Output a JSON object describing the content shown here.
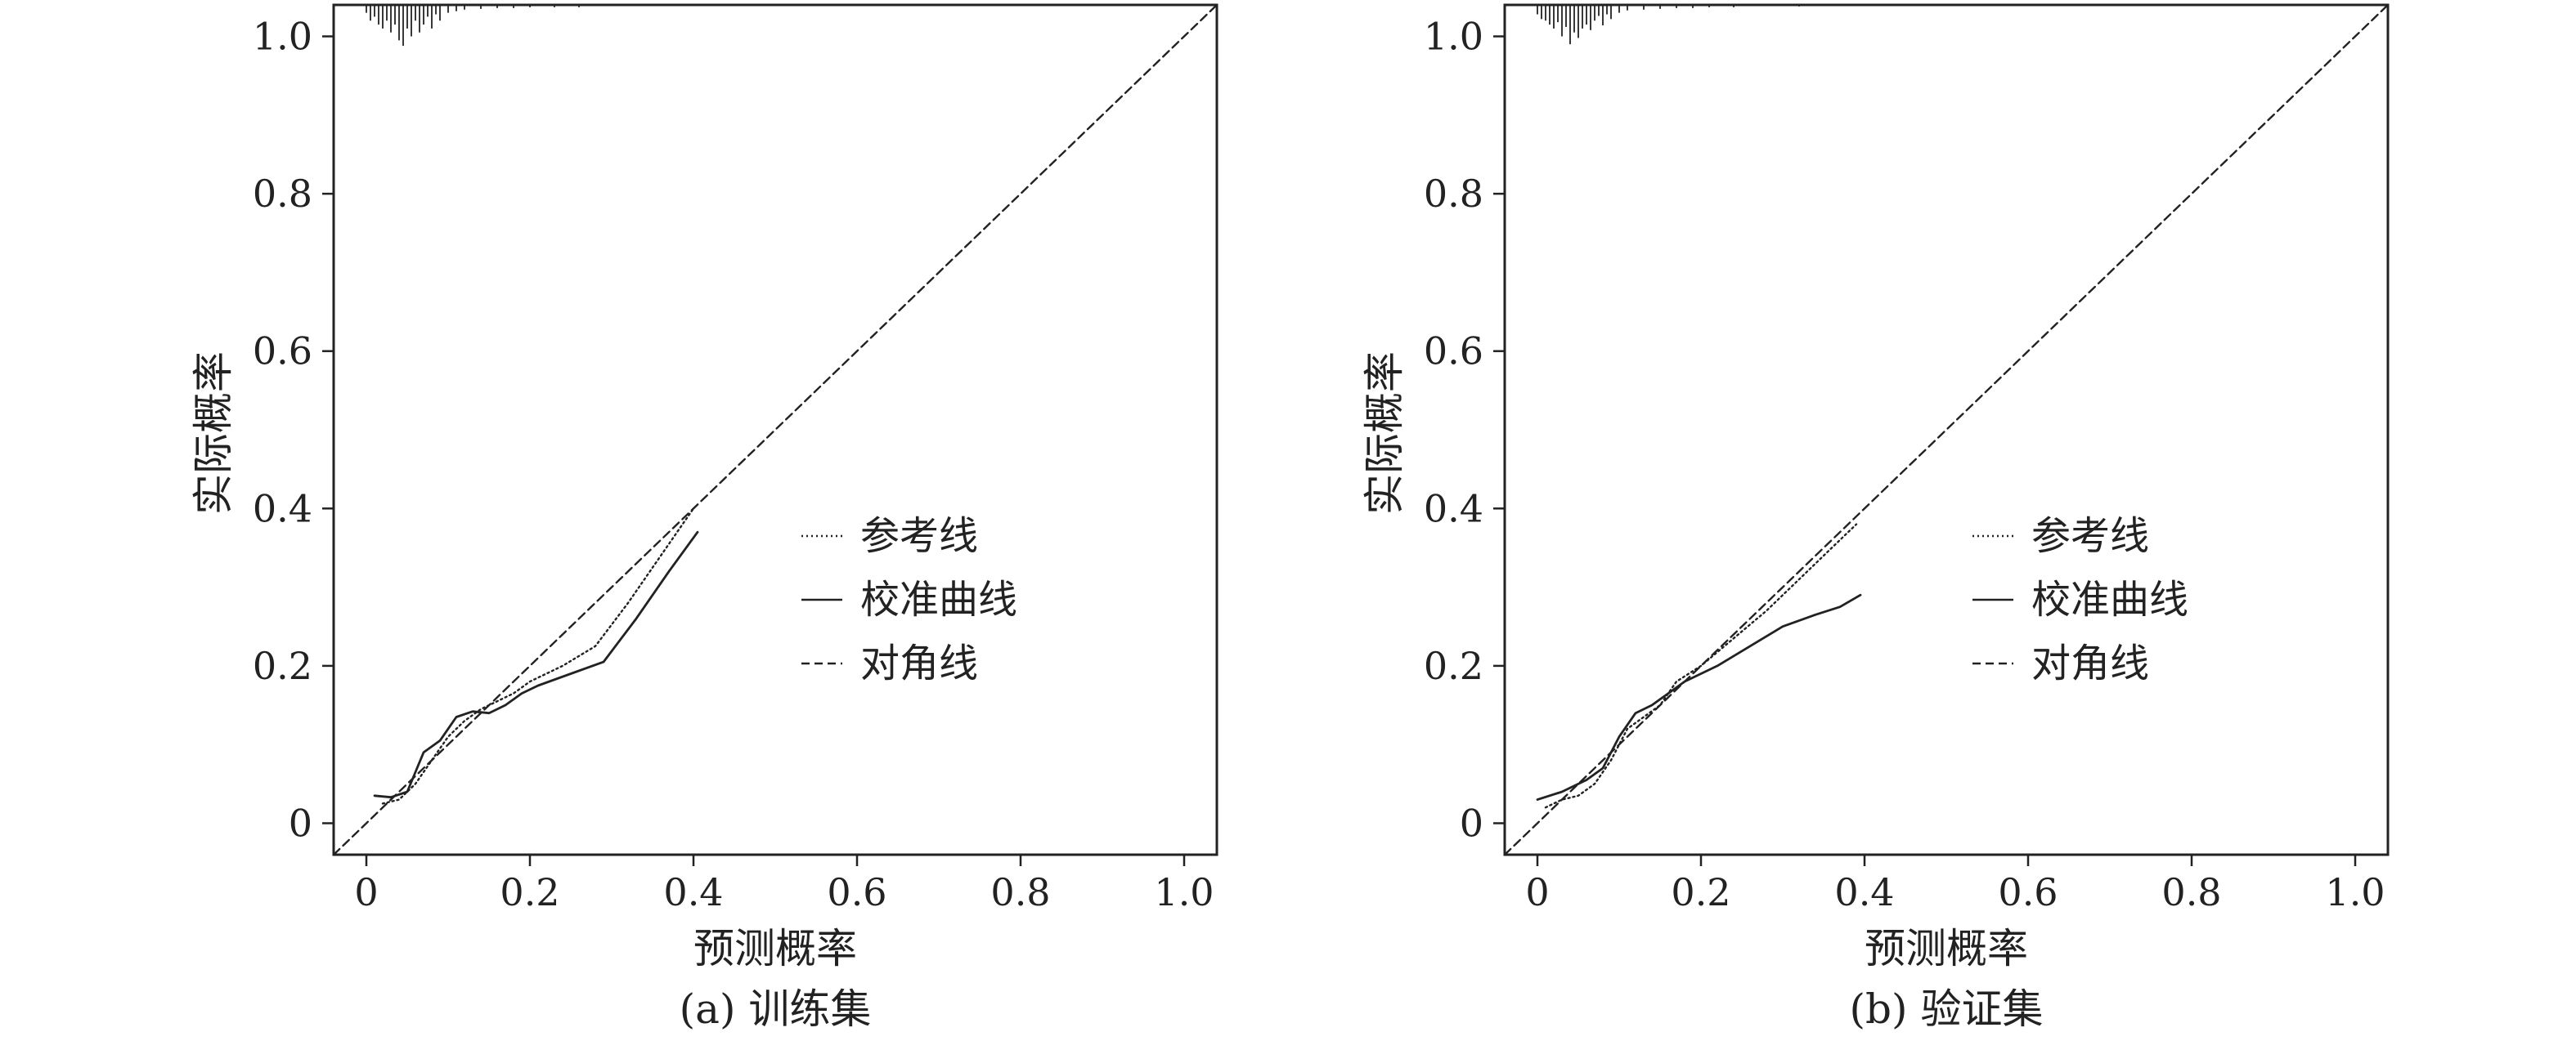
{
  "chart_data": [
    {
      "type": "line",
      "caption": "(a) 训练集",
      "xlabel": "预测概率",
      "ylabel": "实际概率",
      "xlim": [
        -0.04,
        1.04
      ],
      "ylim": [
        -0.04,
        1.04
      ],
      "xticks": [
        {
          "value": 0,
          "label": "0"
        },
        {
          "value": 0.2,
          "label": "0.2"
        },
        {
          "value": 0.4,
          "label": "0.4"
        },
        {
          "value": 0.6,
          "label": "0.6"
        },
        {
          "value": 0.8,
          "label": "0.8"
        },
        {
          "value": 1.0,
          "label": "1.0"
        }
      ],
      "yticks": [
        {
          "value": 0,
          "label": "0"
        },
        {
          "value": 0.2,
          "label": "0.2"
        },
        {
          "value": 0.4,
          "label": "0.4"
        },
        {
          "value": 0.6,
          "label": "0.6"
        },
        {
          "value": 0.8,
          "label": "0.8"
        },
        {
          "value": 1.0,
          "label": "1.0"
        }
      ],
      "legend_position": "center-right",
      "legend": [
        "参考线",
        "校准曲线",
        "对角线"
      ],
      "series": [
        {
          "name": "参考线",
          "style": "dotted",
          "x": [
            0.02,
            0.04,
            0.06,
            0.08,
            0.1,
            0.12,
            0.14,
            0.16,
            0.18,
            0.2,
            0.24,
            0.28,
            0.32,
            0.36,
            0.4
          ],
          "y": [
            0.025,
            0.03,
            0.05,
            0.08,
            0.11,
            0.13,
            0.145,
            0.155,
            0.165,
            0.18,
            0.2,
            0.225,
            0.28,
            0.34,
            0.4
          ]
        },
        {
          "name": "校准曲线",
          "style": "solid",
          "x": [
            0.01,
            0.03,
            0.05,
            0.07,
            0.09,
            0.11,
            0.13,
            0.15,
            0.17,
            0.19,
            0.21,
            0.25,
            0.29,
            0.33,
            0.37,
            0.405
          ],
          "y": [
            0.035,
            0.033,
            0.04,
            0.09,
            0.105,
            0.135,
            0.142,
            0.14,
            0.15,
            0.165,
            0.175,
            0.19,
            0.205,
            0.26,
            0.32,
            0.37
          ]
        },
        {
          "name": "对角线",
          "style": "dashed",
          "x": [
            -0.04,
            1.04
          ],
          "y": [
            -0.04,
            1.04
          ]
        }
      ],
      "rug": [
        {
          "x": 0.0,
          "len": 0.01
        },
        {
          "x": 0.005,
          "len": 0.02
        },
        {
          "x": 0.01,
          "len": 0.015
        },
        {
          "x": 0.015,
          "len": 0.025
        },
        {
          "x": 0.02,
          "len": 0.03
        },
        {
          "x": 0.025,
          "len": 0.02
        },
        {
          "x": 0.03,
          "len": 0.035
        },
        {
          "x": 0.035,
          "len": 0.025
        },
        {
          "x": 0.04,
          "len": 0.045
        },
        {
          "x": 0.045,
          "len": 0.052
        },
        {
          "x": 0.05,
          "len": 0.03
        },
        {
          "x": 0.055,
          "len": 0.04
        },
        {
          "x": 0.06,
          "len": 0.02
        },
        {
          "x": 0.065,
          "len": 0.035
        },
        {
          "x": 0.07,
          "len": 0.025
        },
        {
          "x": 0.075,
          "len": 0.015
        },
        {
          "x": 0.08,
          "len": 0.03
        },
        {
          "x": 0.085,
          "len": 0.012
        },
        {
          "x": 0.09,
          "len": 0.02
        },
        {
          "x": 0.1,
          "len": 0.01
        },
        {
          "x": 0.11,
          "len": 0.008
        },
        {
          "x": 0.12,
          "len": 0.006
        },
        {
          "x": 0.14,
          "len": 0.005
        },
        {
          "x": 0.16,
          "len": 0.004
        },
        {
          "x": 0.18,
          "len": 0.004
        },
        {
          "x": 0.2,
          "len": 0.003
        },
        {
          "x": 0.23,
          "len": 0.003
        },
        {
          "x": 0.26,
          "len": 0.003
        }
      ]
    },
    {
      "type": "line",
      "caption": "(b) 验证集",
      "xlabel": "预测概率",
      "ylabel": "实际概率",
      "xlim": [
        -0.04,
        1.04
      ],
      "ylim": [
        -0.04,
        1.04
      ],
      "xticks": [
        {
          "value": 0,
          "label": "0"
        },
        {
          "value": 0.2,
          "label": "0.2"
        },
        {
          "value": 0.4,
          "label": "0.4"
        },
        {
          "value": 0.6,
          "label": "0.6"
        },
        {
          "value": 0.8,
          "label": "0.8"
        },
        {
          "value": 1.0,
          "label": "1.0"
        }
      ],
      "yticks": [
        {
          "value": 0,
          "label": "0"
        },
        {
          "value": 0.2,
          "label": "0.2"
        },
        {
          "value": 0.4,
          "label": "0.4"
        },
        {
          "value": 0.6,
          "label": "0.6"
        },
        {
          "value": 0.8,
          "label": "0.8"
        },
        {
          "value": 1.0,
          "label": "1.0"
        }
      ],
      "legend_position": "center-right",
      "legend": [
        "参考线",
        "校准曲线",
        "对角线"
      ],
      "series": [
        {
          "name": "参考线",
          "style": "dotted",
          "x": [
            0.01,
            0.03,
            0.05,
            0.07,
            0.09,
            0.11,
            0.13,
            0.15,
            0.17,
            0.2,
            0.24,
            0.28,
            0.32,
            0.36,
            0.39
          ],
          "y": [
            0.02,
            0.03,
            0.035,
            0.05,
            0.08,
            0.12,
            0.135,
            0.15,
            0.18,
            0.2,
            0.235,
            0.27,
            0.31,
            0.35,
            0.38
          ]
        },
        {
          "name": "校准曲线",
          "style": "solid",
          "x": [
            0.0,
            0.03,
            0.06,
            0.08,
            0.1,
            0.12,
            0.14,
            0.16,
            0.18,
            0.22,
            0.26,
            0.3,
            0.34,
            0.37,
            0.395
          ],
          "y": [
            0.03,
            0.04,
            0.055,
            0.07,
            0.11,
            0.14,
            0.15,
            0.165,
            0.18,
            0.2,
            0.225,
            0.25,
            0.265,
            0.275,
            0.29
          ]
        },
        {
          "name": "对角线",
          "style": "dashed",
          "x": [
            -0.04,
            1.04
          ],
          "y": [
            -0.04,
            1.04
          ]
        }
      ],
      "rug": [
        {
          "x": 0.0,
          "len": 0.012
        },
        {
          "x": 0.005,
          "len": 0.018
        },
        {
          "x": 0.01,
          "len": 0.02
        },
        {
          "x": 0.015,
          "len": 0.025
        },
        {
          "x": 0.02,
          "len": 0.03
        },
        {
          "x": 0.025,
          "len": 0.022
        },
        {
          "x": 0.03,
          "len": 0.04
        },
        {
          "x": 0.035,
          "len": 0.028
        },
        {
          "x": 0.04,
          "len": 0.05
        },
        {
          "x": 0.045,
          "len": 0.035
        },
        {
          "x": 0.05,
          "len": 0.042
        },
        {
          "x": 0.055,
          "len": 0.03
        },
        {
          "x": 0.06,
          "len": 0.025
        },
        {
          "x": 0.065,
          "len": 0.032
        },
        {
          "x": 0.07,
          "len": 0.02
        },
        {
          "x": 0.075,
          "len": 0.014
        },
        {
          "x": 0.08,
          "len": 0.026
        },
        {
          "x": 0.085,
          "len": 0.012
        },
        {
          "x": 0.09,
          "len": 0.018
        },
        {
          "x": 0.1,
          "len": 0.01
        },
        {
          "x": 0.11,
          "len": 0.007
        },
        {
          "x": 0.13,
          "len": 0.006
        },
        {
          "x": 0.15,
          "len": 0.005
        },
        {
          "x": 0.17,
          "len": 0.004
        },
        {
          "x": 0.19,
          "len": 0.004
        },
        {
          "x": 0.21,
          "len": 0.003
        },
        {
          "x": 0.24,
          "len": 0.003
        },
        {
          "x": 0.32,
          "len": 0.002
        }
      ]
    }
  ]
}
